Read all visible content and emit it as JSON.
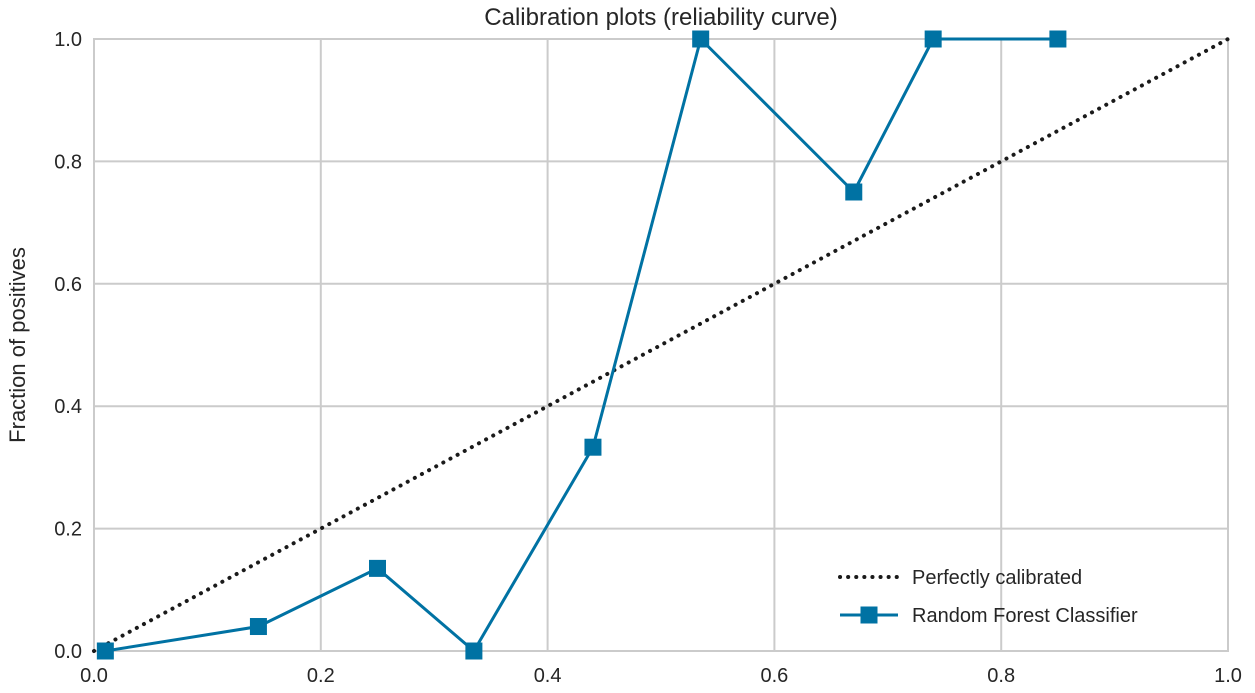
{
  "chart_data": {
    "type": "line",
    "title": "Calibration plots (reliability curve)",
    "xlabel": "",
    "ylabel": "Fraction of positives",
    "xlim": [
      0.0,
      1.0
    ],
    "ylim": [
      0.0,
      1.0
    ],
    "grid": true,
    "x_ticks": [
      0.0,
      0.2,
      0.4,
      0.6,
      0.8,
      1.0
    ],
    "x_tick_labels": [
      "0.0",
      "0.2",
      "0.4",
      "0.6",
      "0.8",
      "1.0"
    ],
    "y_ticks": [
      0.0,
      0.2,
      0.4,
      0.6,
      0.8,
      1.0
    ],
    "y_tick_labels": [
      "0.0",
      "0.2",
      "0.4",
      "0.6",
      "0.8",
      "1.0"
    ],
    "legend_position": "bottom-right",
    "series": [
      {
        "name": "Perfectly calibrated",
        "style": "dotted",
        "marker": "none",
        "color": "#1a1a1a",
        "x": [
          0.0,
          1.0
        ],
        "y": [
          0.0,
          1.0
        ]
      },
      {
        "name": "Random Forest Classifier",
        "style": "solid",
        "marker": "square",
        "color": "#0072a3",
        "x": [
          0.01,
          0.145,
          0.25,
          0.335,
          0.44,
          0.535,
          0.67,
          0.74,
          0.85
        ],
        "y": [
          0.0,
          0.04,
          0.135,
          0.0,
          0.333,
          1.0,
          0.75,
          1.0,
          1.0
        ]
      }
    ]
  }
}
